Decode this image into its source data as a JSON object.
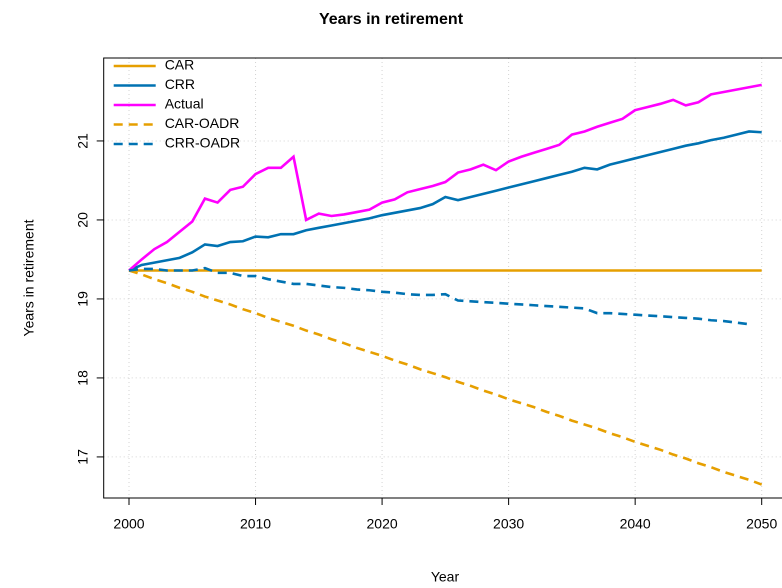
{
  "chart_data": {
    "type": "line",
    "title": "Years in retirement",
    "x_label": "Year",
    "y_label": "Years in retirement",
    "x": [
      2000,
      2001,
      2002,
      2003,
      2004,
      2005,
      2006,
      2007,
      2008,
      2009,
      2010,
      2011,
      2012,
      2013,
      2014,
      2015,
      2016,
      2017,
      2018,
      2019,
      2020,
      2021,
      2022,
      2023,
      2024,
      2025,
      2026,
      2027,
      2028,
      2029,
      2030,
      2031,
      2032,
      2033,
      2034,
      2035,
      2036,
      2037,
      2038,
      2039,
      2040,
      2041,
      2042,
      2043,
      2044,
      2045,
      2046,
      2047,
      2048,
      2049,
      2050
    ],
    "series": [
      {
        "name": "CAR",
        "color": "#E69F00",
        "dash": false,
        "values": [
          19.36,
          19.36,
          19.36,
          19.36,
          19.36,
          19.36,
          19.36,
          19.36,
          19.36,
          19.36,
          19.36,
          19.36,
          19.36,
          19.36,
          19.36,
          19.36,
          19.36,
          19.36,
          19.36,
          19.36,
          19.36,
          19.36,
          19.36,
          19.36,
          19.36,
          19.36,
          19.36,
          19.36,
          19.36,
          19.36,
          19.36,
          19.36,
          19.36,
          19.36,
          19.36,
          19.36,
          19.36,
          19.36,
          19.36,
          19.36,
          19.36,
          19.36,
          19.36,
          19.36,
          19.36,
          19.36,
          19.36,
          19.36,
          19.36,
          19.36,
          19.36
        ]
      },
      {
        "name": "CRR",
        "color": "#0072B2",
        "dash": false,
        "values": [
          19.36,
          19.43,
          19.46,
          19.49,
          19.52,
          19.59,
          19.69,
          19.67,
          19.72,
          19.73,
          19.79,
          19.78,
          19.82,
          19.82,
          19.87,
          19.9,
          19.93,
          19.96,
          19.99,
          20.02,
          20.06,
          20.09,
          20.12,
          20.15,
          20.2,
          20.29,
          20.25,
          20.29,
          20.33,
          20.37,
          20.41,
          20.45,
          20.49,
          20.53,
          20.57,
          20.61,
          20.66,
          20.64,
          20.7,
          20.74,
          20.78,
          20.82,
          20.86,
          20.9,
          20.94,
          20.97,
          21.01,
          21.04,
          21.08,
          21.12,
          21.11
        ]
      },
      {
        "name": "Actual",
        "color": "#FF00FF",
        "dash": false,
        "values": [
          19.36,
          19.5,
          19.63,
          19.72,
          19.85,
          19.98,
          20.27,
          20.22,
          20.38,
          20.42,
          20.58,
          20.66,
          20.66,
          20.8,
          20.0,
          20.08,
          20.05,
          20.07,
          20.1,
          20.13,
          20.22,
          20.26,
          20.35,
          20.39,
          20.43,
          20.48,
          20.6,
          20.64,
          20.7,
          20.63,
          20.74,
          20.8,
          20.85,
          20.9,
          20.95,
          21.08,
          21.12,
          21.18,
          21.23,
          21.28,
          21.39,
          21.43,
          21.47,
          21.52,
          21.45,
          21.49,
          21.59,
          21.62,
          21.65,
          21.68,
          21.71
        ]
      },
      {
        "name": "CAR-OADR",
        "color": "#E69F00",
        "dash": true,
        "values": [
          19.36,
          19.31,
          19.25,
          19.2,
          19.14,
          19.09,
          19.03,
          18.98,
          18.93,
          18.87,
          18.82,
          18.76,
          18.71,
          18.66,
          18.6,
          18.55,
          18.49,
          18.44,
          18.38,
          18.33,
          18.28,
          18.22,
          18.17,
          18.11,
          18.06,
          18.01,
          17.95,
          17.9,
          17.84,
          17.79,
          17.73,
          17.68,
          17.63,
          17.57,
          17.52,
          17.46,
          17.41,
          17.36,
          17.3,
          17.25,
          17.19,
          17.14,
          17.09,
          17.03,
          16.98,
          16.92,
          16.87,
          16.81,
          16.76,
          16.71,
          16.65
        ]
      },
      {
        "name": "CRR-OADR",
        "color": "#0072B2",
        "dash": true,
        "values": [
          19.36,
          19.38,
          19.38,
          19.36,
          19.36,
          19.36,
          19.39,
          19.33,
          19.33,
          19.29,
          19.29,
          19.25,
          19.22,
          19.19,
          19.19,
          19.17,
          19.15,
          19.14,
          19.12,
          19.11,
          19.09,
          19.08,
          19.06,
          19.05,
          19.05,
          19.06,
          18.98,
          18.97,
          18.96,
          18.95,
          18.94,
          18.93,
          18.92,
          18.91,
          18.9,
          18.89,
          18.88,
          18.82,
          18.82,
          18.81,
          18.8,
          18.79,
          18.78,
          18.77,
          18.76,
          18.75,
          18.73,
          18.72,
          18.7,
          18.68,
          null
        ]
      }
    ],
    "xlim": [
      1998,
      2052
    ],
    "ylim": [
      16.48,
      22.05
    ],
    "xticks": [
      2000,
      2010,
      2020,
      2030,
      2040,
      2050
    ],
    "yticks": [
      17,
      18,
      19,
      20,
      21
    ],
    "grid": true,
    "legend": "top-left"
  }
}
